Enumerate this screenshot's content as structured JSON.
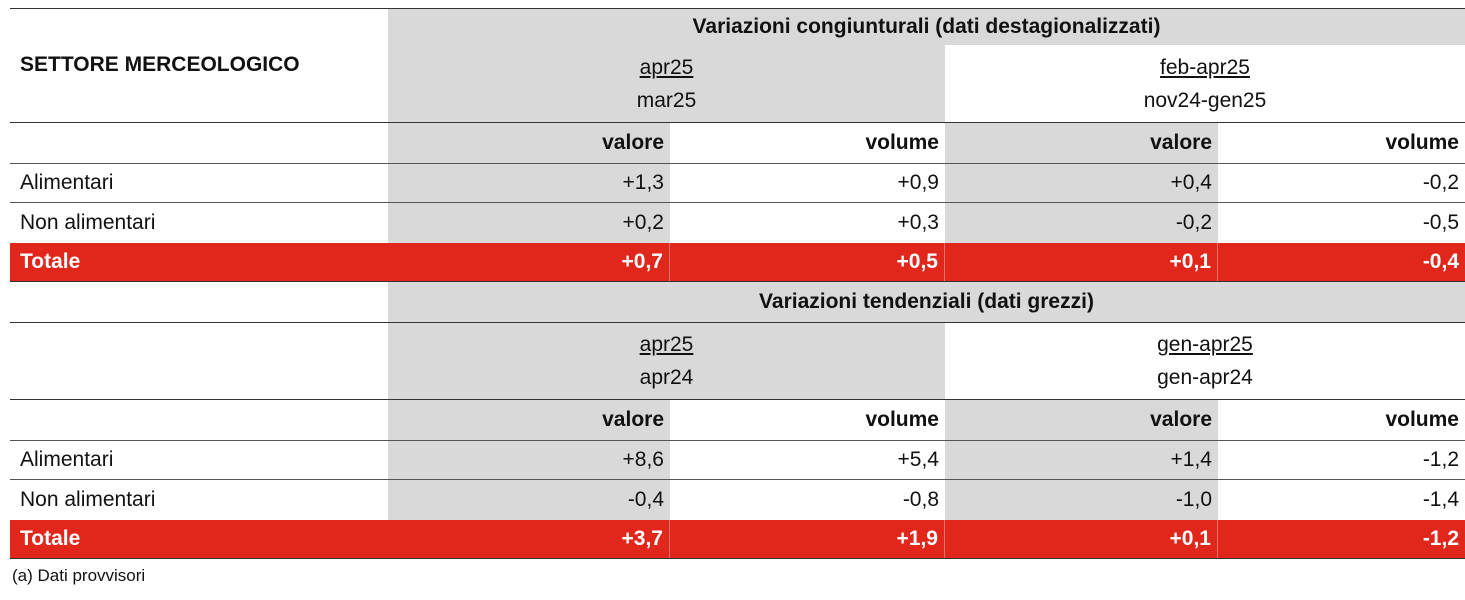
{
  "sector_label": "SETTORE MERCEOLOGICO",
  "sections": [
    {
      "title": "Variazioni congiunturali (dati destagionalizzati)",
      "periods": [
        {
          "top": "apr25",
          "bottom": "mar25"
        },
        {
          "top": "feb-apr25",
          "bottom": "nov24-gen25"
        }
      ],
      "columns": [
        "valore",
        "volume",
        "valore",
        "volume"
      ],
      "rows": [
        {
          "label": "Alimentari",
          "values": [
            "+1,3",
            "+0,9",
            "+0,4",
            "-0,2"
          ]
        },
        {
          "label": "Non alimentari",
          "values": [
            "+0,2",
            "+0,3",
            "-0,2",
            "-0,5"
          ]
        }
      ],
      "total": {
        "label": "Totale",
        "values": [
          "+0,7",
          "+0,5",
          "+0,1",
          "-0,4"
        ]
      }
    },
    {
      "title": "Variazioni tendenziali (dati grezzi)",
      "periods": [
        {
          "top": "apr25",
          "bottom": "apr24"
        },
        {
          "top": "gen-apr25",
          "bottom": "gen-apr24"
        }
      ],
      "columns": [
        "valore",
        "volume",
        "valore",
        "volume"
      ],
      "rows": [
        {
          "label": "Alimentari",
          "values": [
            "+8,6",
            "+5,4",
            "+1,4",
            "-1,2"
          ]
        },
        {
          "label": "Non alimentari",
          "values": [
            "-0,4",
            "-0,8",
            "-1,0",
            "-1,4"
          ]
        }
      ],
      "total": {
        "label": "Totale",
        "values": [
          "+3,7",
          "+1,9",
          "+0,1",
          "-1,2"
        ]
      }
    }
  ],
  "note": "(a) Dati provvisori",
  "colors": {
    "total_row": "#e1261c",
    "shade": "#d9d9d9"
  }
}
